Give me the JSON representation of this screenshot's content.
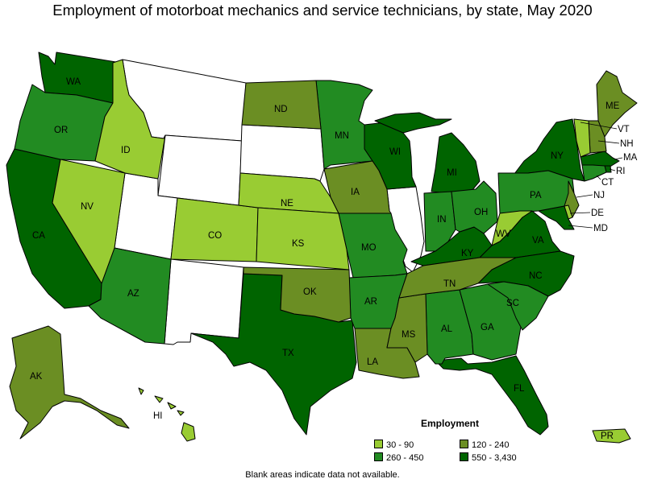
{
  "title": "Employment of motorboat mechanics and service technicians, by state, May 2020",
  "note": "Blank areas indicate data not available.",
  "legend": {
    "title": "Employment",
    "items": [
      {
        "label": "30 - 90",
        "color": "#99cc33"
      },
      {
        "label": "120 - 240",
        "color": "#6b8e23"
      },
      {
        "label": "260 - 450",
        "color": "#228b22"
      },
      {
        "label": "550 - 3,430",
        "color": "#006400"
      }
    ]
  },
  "colors": {
    "bin1": "#99cc33",
    "bin2": "#6b8e23",
    "bin3": "#228b22",
    "bin4": "#006400",
    "nodata": "#ffffff"
  },
  "states": {
    "WA": "WA",
    "OR": "OR",
    "CA": "CA",
    "ID": "ID",
    "NV": "NV",
    "AZ": "AZ",
    "CO": "CO",
    "ND": "ND",
    "NE": "NE",
    "KS": "KS",
    "OK": "OK",
    "TX": "TX",
    "MN": "MN",
    "IA": "IA",
    "MO": "MO",
    "AR": "AR",
    "LA": "LA",
    "WI": "WI",
    "MI": "MI",
    "IN": "IN",
    "OH": "OH",
    "KY": "KY",
    "TN": "TN",
    "MS": "MS",
    "AL": "AL",
    "GA": "GA",
    "FL": "FL",
    "SC": "SC",
    "NC": "NC",
    "VA": "VA",
    "WV": "WV",
    "PA": "PA",
    "NY": "NY",
    "ME": "ME",
    "VT": "VT",
    "NH": "NH",
    "MA": "MA",
    "RI": "RI",
    "CT": "CT",
    "NJ": "NJ",
    "DE": "DE",
    "MD": "MD",
    "AK": "AK",
    "HI": "HI",
    "PR": "PR"
  }
}
